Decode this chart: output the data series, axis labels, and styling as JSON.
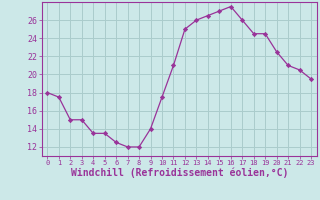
{
  "hours": [
    0,
    1,
    2,
    3,
    4,
    5,
    6,
    7,
    8,
    9,
    10,
    11,
    12,
    13,
    14,
    15,
    16,
    17,
    18,
    19,
    20,
    21,
    22,
    23
  ],
  "values": [
    18,
    17.5,
    15,
    15,
    13.5,
    13.5,
    12.5,
    12,
    12,
    14,
    17.5,
    21,
    25,
    26,
    26.5,
    27,
    27.5,
    26,
    24.5,
    24.5,
    22.5,
    21,
    20.5,
    19.5
  ],
  "line_color": "#993399",
  "marker": "D",
  "marker_size": 2.2,
  "bg_color": "#cce8e8",
  "grid_color": "#aacccc",
  "xlabel": "Windchill (Refroidissement éolien,°C)",
  "ylim": [
    11,
    28
  ],
  "yticks": [
    12,
    14,
    16,
    18,
    20,
    22,
    24,
    26
  ],
  "tick_color": "#993399",
  "spine_color": "#993399",
  "xtick_fontsize": 5.0,
  "ytick_fontsize": 6.0,
  "xlabel_fontsize": 7.0
}
